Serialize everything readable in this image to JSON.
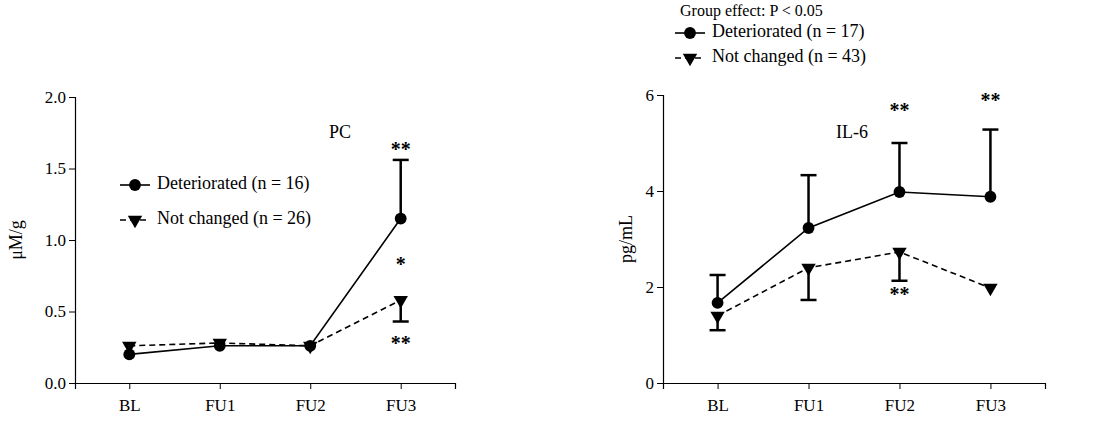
{
  "chart_data": [
    {
      "type": "line",
      "title": "PC",
      "y_label": "μM/g",
      "categories": [
        "BL",
        "FU1",
        "FU2",
        "FU3"
      ],
      "ylim": [
        0,
        2
      ],
      "yticks": [
        {
          "value": 0,
          "label": "0.0"
        },
        {
          "value": 0.5,
          "label": "0.5"
        },
        {
          "value": 1,
          "label": "1.0"
        },
        {
          "value": 1.5,
          "label": "1.5"
        },
        {
          "value": 2,
          "label": "2.0"
        }
      ],
      "legend": "upper left",
      "series": [
        {
          "name": "Deteriorated (n = 16)",
          "color": "#000000",
          "marker": "circle",
          "line_style": "solid",
          "values": [
            0.2,
            0.26,
            0.26,
            1.15
          ],
          "error_upper": [
            null,
            null,
            null,
            0.41
          ]
        },
        {
          "name": "Not changed (n = 26)",
          "color": "#000000",
          "marker": "triangle-down",
          "line_style": "dashed",
          "values": [
            0.26,
            0.28,
            0.26,
            0.58
          ],
          "error_lower": [
            null,
            null,
            null,
            0.15
          ]
        }
      ],
      "annotations": [
        {
          "text": "**",
          "x": "FU3",
          "y": 1.59
        },
        {
          "text": "*",
          "x": "FU3",
          "y": 0.78
        },
        {
          "text": "**",
          "x": "FU3",
          "y": 0.23
        }
      ]
    },
    {
      "type": "line",
      "title": "IL-6",
      "subtitle": "Group effect: P < 0.05",
      "y_label": "pg/mL",
      "categories": [
        "BL",
        "FU1",
        "FU2",
        "FU3"
      ],
      "ylim": [
        0,
        6
      ],
      "yticks": [
        0,
        2,
        4,
        6
      ],
      "legend": "top",
      "series": [
        {
          "name": "Deteriorated (n = 17)",
          "color": "#000000",
          "marker": "circle",
          "line_style": "solid",
          "values": [
            1.67,
            3.23,
            3.98,
            3.88
          ],
          "error_upper": [
            0.58,
            1.1,
            1.02,
            1.4
          ]
        },
        {
          "name": "Not changed (n = 43)",
          "color": "#000000",
          "marker": "triangle-down",
          "line_style": "dashed",
          "values": [
            1.4,
            2.4,
            2.73,
            1.98
          ],
          "error_lower": [
            0.3,
            0.67,
            0.6,
            null
          ]
        }
      ],
      "annotations": [
        {
          "text": "**",
          "x": "FU2",
          "y": 5.55
        },
        {
          "text": "**",
          "x": "FU3",
          "y": 5.75
        },
        {
          "text": "**",
          "x": "FU2",
          "y": 1.7
        }
      ]
    }
  ]
}
